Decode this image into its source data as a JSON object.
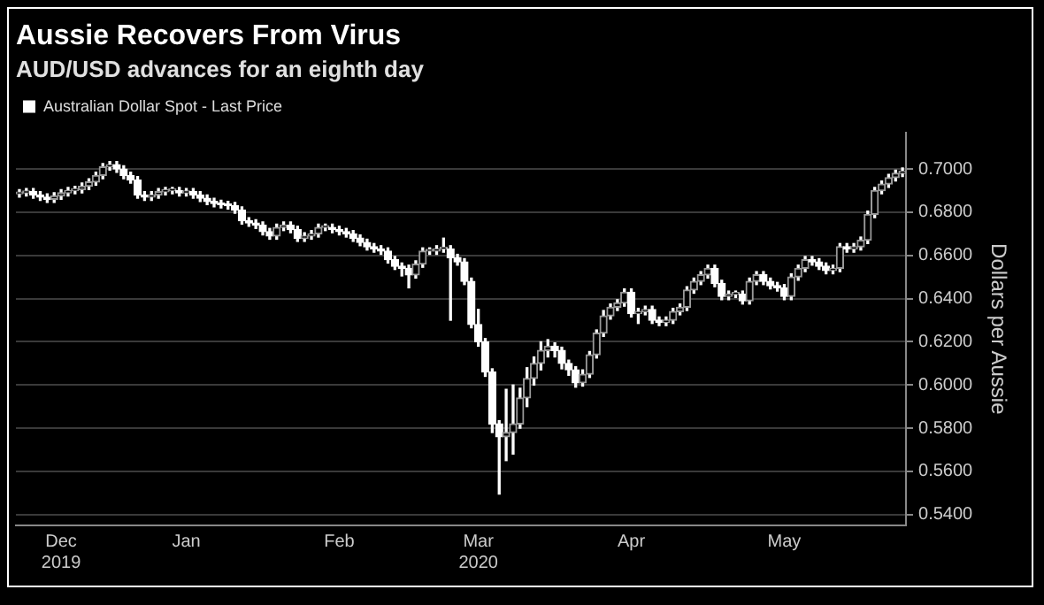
{
  "chart_data": {
    "type": "candlestick",
    "title": "Aussie Recovers From Virus",
    "subtitle": "AUD/USD advances for an eighth day",
    "ylabel": "Dollars per Aussie",
    "legend": "top left",
    "grid": "y",
    "categories": [
      null,
      null,
      null,
      null,
      null,
      null,
      "Dec\n2019",
      null,
      null,
      null,
      null,
      null,
      null,
      null,
      null,
      null,
      null,
      null,
      null,
      null,
      null,
      null,
      null,
      null,
      "Jan",
      null,
      null,
      null,
      null,
      null,
      null,
      null,
      null,
      null,
      null,
      null,
      null,
      null,
      null,
      null,
      null,
      null,
      null,
      null,
      null,
      null,
      "Feb",
      null,
      null,
      null,
      null,
      null,
      null,
      null,
      null,
      null,
      null,
      null,
      null,
      null,
      null,
      null,
      null,
      null,
      null,
      null,
      "Mar\n2020",
      null,
      null,
      null,
      null,
      null,
      null,
      null,
      null,
      null,
      null,
      null,
      null,
      null,
      null,
      null,
      null,
      null,
      null,
      null,
      null,
      null,
      "Apr",
      null,
      null,
      null,
      null,
      null,
      null,
      null,
      null,
      null,
      null,
      null,
      null,
      null,
      null,
      null,
      null,
      null,
      null,
      null,
      null,
      null,
      "May",
      null,
      null,
      null,
      null,
      null,
      null,
      null,
      null,
      null,
      null,
      null,
      null,
      null,
      null,
      null,
      null,
      null
    ],
    "ylim": [
      0.535,
      0.717
    ],
    "yticks": [
      {
        "value": 0.54,
        "label": "0.5400"
      },
      {
        "value": 0.56,
        "label": "0.5600"
      },
      {
        "value": 0.58,
        "label": "0.5800"
      },
      {
        "value": 0.6,
        "label": "0.6000"
      },
      {
        "value": 0.62,
        "label": "0.6200"
      },
      {
        "value": 0.64,
        "label": "0.6400"
      },
      {
        "value": 0.66,
        "label": "0.6600"
      },
      {
        "value": 0.68,
        "label": "0.6800"
      },
      {
        "value": 0.7,
        "label": "0.7000"
      }
    ],
    "series": [
      {
        "name": "Australian Dollar Spot - Last Price",
        "color": "#ffffff",
        "colors": [
          "#999999",
          "#999999",
          "#ffffff",
          "#ffffff",
          "#ffffff",
          "#999999",
          "#999999",
          "#999999",
          "#999999",
          "#999999",
          "#999999",
          "#999999",
          "#999999",
          "#999999",
          "#ffffff",
          "#ffffff",
          "#ffffff",
          "#ffffff",
          "#ffffff",
          "#999999",
          "#999999",
          "#999999",
          "#999999",
          "#ffffff",
          "#999999",
          "#ffffff",
          "#ffffff",
          "#ffffff",
          "#ffffff",
          "#ffffff",
          "#ffffff",
          "#ffffff",
          "#ffffff",
          "#ffffff",
          "#ffffff",
          "#ffffff",
          "#ffffff",
          "#999999",
          "#999999",
          "#ffffff",
          "#ffffff",
          "#999999",
          "#999999",
          "#999999",
          "#999999",
          "#ffffff",
          "#ffffff",
          "#ffffff",
          "#ffffff",
          "#ffffff",
          "#ffffff",
          "#ffffff",
          "#ffffff",
          "#ffffff",
          "#ffffff",
          "#ffffff",
          "#ffffff",
          "#999999",
          "#999999",
          "#999999",
          "#999999",
          "#999999",
          "#ffffff",
          "#ffffff",
          "#ffffff",
          "#ffffff",
          "#ffffff",
          "#ffffff",
          "#ffffff",
          "#ffffff",
          "#999999",
          "#999999",
          "#999999",
          "#999999",
          "#999999",
          "#999999",
          "#999999",
          "#ffffff",
          "#ffffff",
          "#ffffff",
          "#ffffff",
          "#999999",
          "#999999",
          "#999999",
          "#999999",
          "#999999",
          "#999999",
          "#999999",
          "#ffffff",
          "#999999",
          "#999999",
          "#ffffff",
          "#ffffff",
          "#999999",
          "#999999",
          "#999999",
          "#999999",
          "#999999",
          "#999999",
          "#999999",
          "#ffffff",
          "#ffffff",
          "#999999",
          "#999999",
          "#ffffff",
          "#999999",
          "#999999",
          "#ffffff",
          "#ffffff",
          "#ffffff",
          "#ffffff",
          "#999999",
          "#999999",
          "#999999",
          "#ffffff",
          "#ffffff",
          "#ffffff",
          "#999999",
          "#999999",
          "#ffffff",
          "#999999",
          "#999999",
          "#999999",
          "#999999",
          "#999999",
          "#999999",
          "#999999",
          "#999999"
        ],
        "ohlc": [
          [
            0.6885,
            0.6905,
            0.687,
            0.689
          ],
          [
            0.689,
            0.691,
            0.6875,
            0.6895
          ],
          [
            0.6895,
            0.691,
            0.6865,
            0.688
          ],
          [
            0.688,
            0.6895,
            0.6855,
            0.687
          ],
          [
            0.687,
            0.6885,
            0.6845,
            0.686
          ],
          [
            0.686,
            0.689,
            0.6845,
            0.6875
          ],
          [
            0.6875,
            0.6905,
            0.686,
            0.689
          ],
          [
            0.689,
            0.6915,
            0.6875,
            0.69
          ],
          [
            0.69,
            0.692,
            0.6885,
            0.6905
          ],
          [
            0.6905,
            0.6935,
            0.689,
            0.692
          ],
          [
            0.692,
            0.6955,
            0.6905,
            0.694
          ],
          [
            0.694,
            0.6985,
            0.6925,
            0.697
          ],
          [
            0.697,
            0.7025,
            0.6955,
            0.701
          ],
          [
            0.701,
            0.7035,
            0.6995,
            0.702
          ],
          [
            0.702,
            0.7035,
            0.6985,
            0.7
          ],
          [
            0.7,
            0.7015,
            0.6955,
            0.697
          ],
          [
            0.697,
            0.6985,
            0.6935,
            0.695
          ],
          [
            0.695,
            0.6965,
            0.6865,
            0.688
          ],
          [
            0.688,
            0.6895,
            0.6855,
            0.687
          ],
          [
            0.687,
            0.6895,
            0.6855,
            0.688
          ],
          [
            0.688,
            0.691,
            0.6865,
            0.6895
          ],
          [
            0.6895,
            0.6915,
            0.688,
            0.69
          ],
          [
            0.69,
            0.6915,
            0.6885,
            0.69
          ],
          [
            0.69,
            0.6915,
            0.6875,
            0.689
          ],
          [
            0.689,
            0.691,
            0.6875,
            0.6895
          ],
          [
            0.6895,
            0.691,
            0.6865,
            0.688
          ],
          [
            0.688,
            0.6895,
            0.685,
            0.6865
          ],
          [
            0.6865,
            0.688,
            0.6835,
            0.685
          ],
          [
            0.685,
            0.6865,
            0.6825,
            0.684
          ],
          [
            0.684,
            0.6855,
            0.682,
            0.6835
          ],
          [
            0.6835,
            0.685,
            0.6815,
            0.683
          ],
          [
            0.683,
            0.6845,
            0.6795,
            0.681
          ],
          [
            0.681,
            0.6825,
            0.6745,
            0.676
          ],
          [
            0.676,
            0.6775,
            0.6735,
            0.675
          ],
          [
            0.675,
            0.6765,
            0.6725,
            0.674
          ],
          [
            0.674,
            0.6755,
            0.6695,
            0.671
          ],
          [
            0.671,
            0.6725,
            0.6675,
            0.669
          ],
          [
            0.669,
            0.6745,
            0.6675,
            0.673
          ],
          [
            0.673,
            0.6755,
            0.6715,
            0.674
          ],
          [
            0.674,
            0.6755,
            0.6705,
            0.672
          ],
          [
            0.672,
            0.6735,
            0.6665,
            0.668
          ],
          [
            0.668,
            0.6705,
            0.6665,
            0.669
          ],
          [
            0.669,
            0.6715,
            0.6675,
            0.67
          ],
          [
            0.67,
            0.6745,
            0.6685,
            0.673
          ],
          [
            0.673,
            0.6745,
            0.6715,
            0.673
          ],
          [
            0.673,
            0.6745,
            0.6705,
            0.672
          ],
          [
            0.672,
            0.6735,
            0.6695,
            0.671
          ],
          [
            0.671,
            0.6725,
            0.6685,
            0.67
          ],
          [
            0.67,
            0.6715,
            0.6665,
            0.668
          ],
          [
            0.668,
            0.6695,
            0.6645,
            0.666
          ],
          [
            0.666,
            0.6675,
            0.6625,
            0.664
          ],
          [
            0.664,
            0.6655,
            0.6615,
            0.663
          ],
          [
            0.663,
            0.6645,
            0.6605,
            0.662
          ],
          [
            0.662,
            0.6635,
            0.6565,
            0.658
          ],
          [
            0.658,
            0.6595,
            0.6535,
            0.655
          ],
          [
            0.655,
            0.6565,
            0.6505,
            0.654
          ],
          [
            0.654,
            0.6555,
            0.645,
            0.651
          ],
          [
            0.651,
            0.6575,
            0.6495,
            0.656
          ],
          [
            0.656,
            0.6635,
            0.6545,
            0.662
          ],
          [
            0.662,
            0.6635,
            0.6605,
            0.662
          ],
          [
            0.662,
            0.6645,
            0.6605,
            0.663
          ],
          [
            0.663,
            0.668,
            0.6615,
            0.663
          ],
          [
            0.663,
            0.6645,
            0.63,
            0.659
          ],
          [
            0.659,
            0.6605,
            0.6555,
            0.657
          ],
          [
            0.657,
            0.6585,
            0.6465,
            0.648
          ],
          [
            0.648,
            0.6495,
            0.6265,
            0.628
          ],
          [
            0.628,
            0.635,
            0.618,
            0.62
          ],
          [
            0.62,
            0.6215,
            0.604,
            0.606
          ],
          [
            0.606,
            0.6075,
            0.578,
            0.582
          ],
          [
            0.582,
            0.5835,
            0.5495,
            0.576
          ],
          [
            0.576,
            0.598,
            0.565,
            0.578
          ],
          [
            0.578,
            0.6,
            0.568,
            0.582
          ],
          [
            0.582,
            0.5985,
            0.58,
            0.594
          ],
          [
            0.594,
            0.608,
            0.59,
            0.603
          ],
          [
            0.603,
            0.613,
            0.6,
            0.61
          ],
          [
            0.61,
            0.62,
            0.607,
            0.616
          ],
          [
            0.616,
            0.621,
            0.613,
            0.618
          ],
          [
            0.618,
            0.6195,
            0.613,
            0.616
          ],
          [
            0.616,
            0.6175,
            0.6075,
            0.61
          ],
          [
            0.61,
            0.6115,
            0.6045,
            0.607
          ],
          [
            0.607,
            0.6085,
            0.599,
            0.601
          ],
          [
            0.601,
            0.607,
            0.5995,
            0.605
          ],
          [
            0.605,
            0.6155,
            0.6035,
            0.614
          ],
          [
            0.614,
            0.6255,
            0.6125,
            0.624
          ],
          [
            0.624,
            0.6345,
            0.6225,
            0.632
          ],
          [
            0.632,
            0.6375,
            0.6305,
            0.636
          ],
          [
            0.636,
            0.6395,
            0.6345,
            0.638
          ],
          [
            0.638,
            0.6445,
            0.6365,
            0.643
          ],
          [
            0.643,
            0.6445,
            0.6315,
            0.633
          ],
          [
            0.633,
            0.6355,
            0.6285,
            0.634
          ],
          [
            0.634,
            0.6365,
            0.6325,
            0.635
          ],
          [
            0.635,
            0.6365,
            0.6285,
            0.63
          ],
          [
            0.63,
            0.6315,
            0.6275,
            0.629
          ],
          [
            0.629,
            0.6315,
            0.6275,
            0.63
          ],
          [
            0.63,
            0.6355,
            0.6285,
            0.634
          ],
          [
            0.634,
            0.6375,
            0.6325,
            0.636
          ],
          [
            0.636,
            0.6455,
            0.6345,
            0.644
          ],
          [
            0.644,
            0.6495,
            0.6425,
            0.648
          ],
          [
            0.648,
            0.6525,
            0.6465,
            0.651
          ],
          [
            0.651,
            0.6555,
            0.6495,
            0.654
          ],
          [
            0.654,
            0.6555,
            0.6455,
            0.647
          ],
          [
            0.647,
            0.6485,
            0.6395,
            0.641
          ],
          [
            0.641,
            0.6435,
            0.6395,
            0.642
          ],
          [
            0.642,
            0.6435,
            0.6405,
            0.642
          ],
          [
            0.642,
            0.6435,
            0.6375,
            0.639
          ],
          [
            0.639,
            0.6495,
            0.6375,
            0.648
          ],
          [
            0.648,
            0.6525,
            0.6465,
            0.651
          ],
          [
            0.651,
            0.6525,
            0.6465,
            0.648
          ],
          [
            0.648,
            0.6495,
            0.6445,
            0.646
          ],
          [
            0.646,
            0.6475,
            0.6435,
            0.645
          ],
          [
            0.645,
            0.6465,
            0.6395,
            0.641
          ],
          [
            0.641,
            0.6515,
            0.6395,
            0.65
          ],
          [
            0.65,
            0.6555,
            0.6485,
            0.654
          ],
          [
            0.654,
            0.6595,
            0.6525,
            0.658
          ],
          [
            0.658,
            0.6595,
            0.6555,
            0.657
          ],
          [
            0.657,
            0.6585,
            0.6535,
            0.655
          ],
          [
            0.655,
            0.6565,
            0.6515,
            0.653
          ],
          [
            0.653,
            0.6555,
            0.6515,
            0.654
          ],
          [
            0.654,
            0.6655,
            0.6525,
            0.664
          ],
          [
            0.664,
            0.6655,
            0.6615,
            0.663
          ],
          [
            0.663,
            0.6655,
            0.6615,
            0.664
          ],
          [
            0.664,
            0.6685,
            0.6625,
            0.667
          ],
          [
            0.667,
            0.6805,
            0.6655,
            0.679
          ],
          [
            0.679,
            0.6915,
            0.6775,
            0.69
          ],
          [
            0.69,
            0.6945,
            0.6885,
            0.693
          ],
          [
            0.693,
            0.6975,
            0.6915,
            0.696
          ],
          [
            0.696,
            0.6995,
            0.6945,
            0.698
          ],
          [
            0.698,
            0.7005,
            0.6965,
            0.699
          ]
        ]
      }
    ]
  }
}
